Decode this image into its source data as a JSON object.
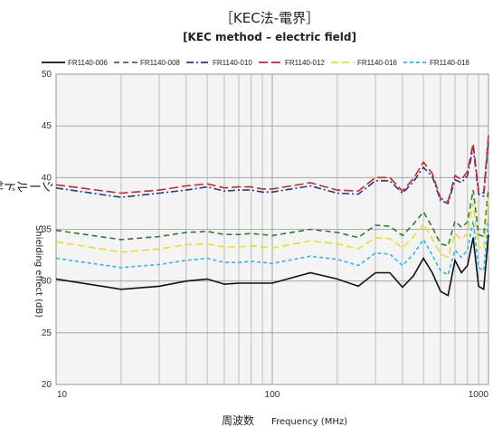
{
  "chart_data": {
    "type": "line",
    "title": "［KEC法-電界］",
    "subtitle": "[KEC method – electric field]",
    "ylabel_jp": "シールド効果",
    "ylabel_en": "Shielding effect (dB)",
    "xlabel_jp": "周波数",
    "xlabel_en": "Frequency (MHz)",
    "xscale": "log",
    "xlim": [
      10,
      1000
    ],
    "ylim": [
      20,
      50
    ],
    "yticks": [
      20,
      25,
      30,
      35,
      40,
      45,
      50
    ],
    "xtick_labels": [
      "10",
      "100",
      "1000"
    ],
    "grid": true,
    "legend_position": "top",
    "series": [
      {
        "name": "FR1140-006",
        "color": "#111111",
        "dash": "solid",
        "points": [
          [
            10,
            30.2
          ],
          [
            20,
            29.2
          ],
          [
            30,
            29.5
          ],
          [
            40,
            30.0
          ],
          [
            50,
            30.2
          ],
          [
            60,
            29.7
          ],
          [
            70,
            29.8
          ],
          [
            80,
            29.8
          ],
          [
            90,
            29.8
          ],
          [
            100,
            29.8
          ],
          [
            150,
            30.8
          ],
          [
            200,
            30.2
          ],
          [
            250,
            29.5
          ],
          [
            300,
            30.8
          ],
          [
            350,
            30.8
          ],
          [
            400,
            29.4
          ],
          [
            450,
            30.5
          ],
          [
            500,
            32.2
          ],
          [
            550,
            30.8
          ],
          [
            600,
            29.0
          ],
          [
            650,
            28.6
          ],
          [
            700,
            32.0
          ],
          [
            750,
            30.8
          ],
          [
            800,
            31.5
          ],
          [
            850,
            34.2
          ],
          [
            900,
            29.5
          ],
          [
            950,
            29.2
          ],
          [
            1000,
            34.5
          ]
        ]
      },
      {
        "name": "FR1140-008",
        "color": "#2e7d32",
        "dash": "6,4",
        "points": [
          [
            10,
            34.9
          ],
          [
            20,
            34.0
          ],
          [
            30,
            34.3
          ],
          [
            40,
            34.7
          ],
          [
            50,
            34.8
          ],
          [
            60,
            34.5
          ],
          [
            70,
            34.5
          ],
          [
            80,
            34.6
          ],
          [
            90,
            34.5
          ],
          [
            100,
            34.4
          ],
          [
            150,
            35.0
          ],
          [
            200,
            34.7
          ],
          [
            250,
            34.2
          ],
          [
            300,
            35.4
          ],
          [
            350,
            35.3
          ],
          [
            400,
            34.4
          ],
          [
            450,
            35.5
          ],
          [
            500,
            36.7
          ],
          [
            550,
            35.2
          ],
          [
            600,
            33.6
          ],
          [
            650,
            33.4
          ],
          [
            700,
            35.8
          ],
          [
            750,
            35.2
          ],
          [
            800,
            35.7
          ],
          [
            850,
            38.8
          ],
          [
            900,
            34.5
          ],
          [
            950,
            34.3
          ],
          [
            1000,
            39.0
          ]
        ]
      },
      {
        "name": "FR1140-010",
        "color": "#1f3a93",
        "dash": "8,3,2,3",
        "points": [
          [
            10,
            39.0
          ],
          [
            20,
            38.1
          ],
          [
            30,
            38.5
          ],
          [
            40,
            38.8
          ],
          [
            50,
            39.1
          ],
          [
            60,
            38.7
          ],
          [
            70,
            38.8
          ],
          [
            80,
            38.8
          ],
          [
            90,
            38.6
          ],
          [
            100,
            38.6
          ],
          [
            150,
            39.2
          ],
          [
            200,
            38.5
          ],
          [
            250,
            38.4
          ],
          [
            300,
            39.7
          ],
          [
            350,
            39.7
          ],
          [
            400,
            38.5
          ],
          [
            450,
            39.6
          ],
          [
            500,
            41.0
          ],
          [
            550,
            40.1
          ],
          [
            600,
            37.8
          ],
          [
            650,
            37.5
          ],
          [
            700,
            39.8
          ],
          [
            750,
            39.5
          ],
          [
            800,
            40.2
          ],
          [
            850,
            42.9
          ],
          [
            900,
            38.4
          ],
          [
            950,
            38.2
          ],
          [
            1000,
            43.5
          ]
        ]
      },
      {
        "name": "FR1140-012",
        "color": "#c62828",
        "dash": "10,4",
        "points": [
          [
            10,
            39.3
          ],
          [
            20,
            38.5
          ],
          [
            30,
            38.8
          ],
          [
            40,
            39.2
          ],
          [
            50,
            39.4
          ],
          [
            60,
            39.0
          ],
          [
            70,
            39.1
          ],
          [
            80,
            39.1
          ],
          [
            90,
            38.9
          ],
          [
            100,
            38.9
          ],
          [
            150,
            39.5
          ],
          [
            200,
            38.8
          ],
          [
            250,
            38.7
          ],
          [
            300,
            40.0
          ],
          [
            350,
            40.0
          ],
          [
            400,
            38.7
          ],
          [
            450,
            39.9
          ],
          [
            500,
            41.5
          ],
          [
            550,
            40.4
          ],
          [
            600,
            38.0
          ],
          [
            650,
            37.7
          ],
          [
            700,
            40.2
          ],
          [
            750,
            39.8
          ],
          [
            800,
            40.6
          ],
          [
            850,
            43.3
          ],
          [
            900,
            38.7
          ],
          [
            950,
            38.5
          ],
          [
            1000,
            44.1
          ]
        ]
      },
      {
        "name": "FR1140-016",
        "color": "#e8e02a",
        "dash": "8,4",
        "points": [
          [
            10,
            33.8
          ],
          [
            20,
            32.8
          ],
          [
            30,
            33.1
          ],
          [
            40,
            33.5
          ],
          [
            50,
            33.6
          ],
          [
            60,
            33.3
          ],
          [
            70,
            33.3
          ],
          [
            80,
            33.4
          ],
          [
            90,
            33.3
          ],
          [
            100,
            33.2
          ],
          [
            150,
            33.9
          ],
          [
            200,
            33.6
          ],
          [
            250,
            33.1
          ],
          [
            300,
            34.2
          ],
          [
            350,
            34.1
          ],
          [
            400,
            33.2
          ],
          [
            450,
            34.3
          ],
          [
            500,
            35.5
          ],
          [
            550,
            34.1
          ],
          [
            600,
            32.6
          ],
          [
            650,
            32.3
          ],
          [
            700,
            34.6
          ],
          [
            750,
            34.0
          ],
          [
            800,
            34.6
          ],
          [
            850,
            37.5
          ],
          [
            900,
            33.3
          ],
          [
            950,
            33.1
          ],
          [
            1000,
            38.0
          ]
        ]
      },
      {
        "name": "FR1140-018",
        "color": "#29b6f6",
        "dash": "4,3",
        "points": [
          [
            10,
            32.2
          ],
          [
            20,
            31.3
          ],
          [
            30,
            31.6
          ],
          [
            40,
            32.0
          ],
          [
            50,
            32.2
          ],
          [
            60,
            31.8
          ],
          [
            70,
            31.8
          ],
          [
            80,
            31.9
          ],
          [
            90,
            31.8
          ],
          [
            100,
            31.7
          ],
          [
            150,
            32.4
          ],
          [
            200,
            32.1
          ],
          [
            250,
            31.5
          ],
          [
            300,
            32.7
          ],
          [
            350,
            32.6
          ],
          [
            400,
            31.5
          ],
          [
            450,
            32.6
          ],
          [
            500,
            34.0
          ],
          [
            550,
            32.5
          ],
          [
            600,
            31.0
          ],
          [
            650,
            30.6
          ],
          [
            700,
            33.0
          ],
          [
            750,
            32.3
          ],
          [
            800,
            33.0
          ],
          [
            850,
            35.8
          ],
          [
            900,
            31.3
          ],
          [
            950,
            31.0
          ],
          [
            1000,
            36.0
          ]
        ]
      }
    ]
  }
}
